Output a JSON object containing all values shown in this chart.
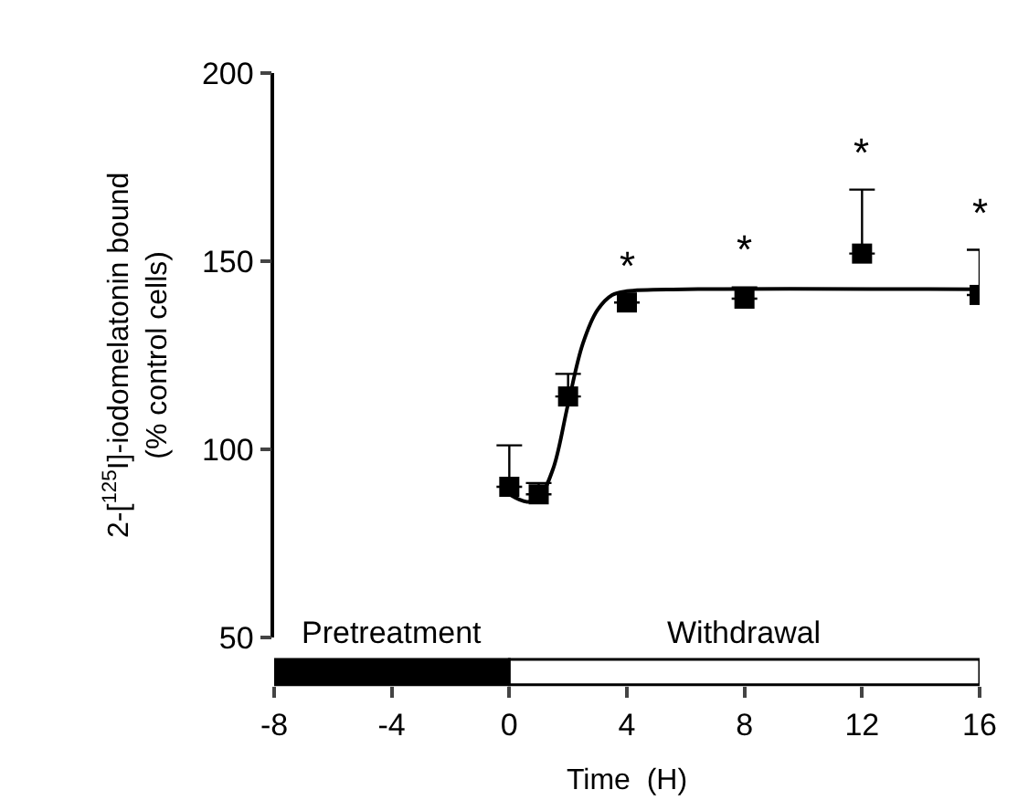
{
  "chart_data": {
    "type": "scatter",
    "xlabel": "Time  (H)",
    "ylabel": "2-[$^{125}$I]-iodomelatonin bound\n(% control cells)",
    "xlim": [
      -8,
      16
    ],
    "xticks": [
      -8,
      -4,
      0,
      4,
      8,
      12,
      16
    ],
    "ylim": [
      50,
      200
    ],
    "yticks": [
      50,
      100,
      150,
      200
    ],
    "legend": false,
    "series": [
      {
        "color": "#000000",
        "marker": "square",
        "x": [
          0,
          1,
          2,
          4,
          8,
          12,
          16
        ],
        "values": [
          90,
          88,
          114,
          139,
          140,
          152,
          141
        ],
        "errors": [
          [
            90,
            101
          ],
          [
            88,
            91
          ],
          [
            114,
            120
          ],
          null,
          [
            140,
            143
          ],
          [
            152,
            169
          ],
          [
            141,
            153
          ]
        ]
      },
      {
        "type": "line",
        "color": "#000000",
        "line_style": "solid",
        "x": [
          0,
          0.6,
          1,
          1.5,
          2,
          2.5,
          3,
          3.5,
          4,
          6,
          16
        ],
        "values": [
          88,
          86,
          87,
          95,
          112,
          128,
          137,
          141,
          142,
          142.5,
          142.5
        ]
      }
    ],
    "annotations": [
      "Pretreatment",
      "Withdrawal",
      {
        "text": "*",
        "x": 4,
        "y": 139
      },
      {
        "text": "*",
        "x": 8,
        "y": 143
      },
      {
        "text": "*",
        "x": 12,
        "y": 169
      },
      {
        "text": "*",
        "x": 16,
        "y": 153
      }
    ]
  }
}
